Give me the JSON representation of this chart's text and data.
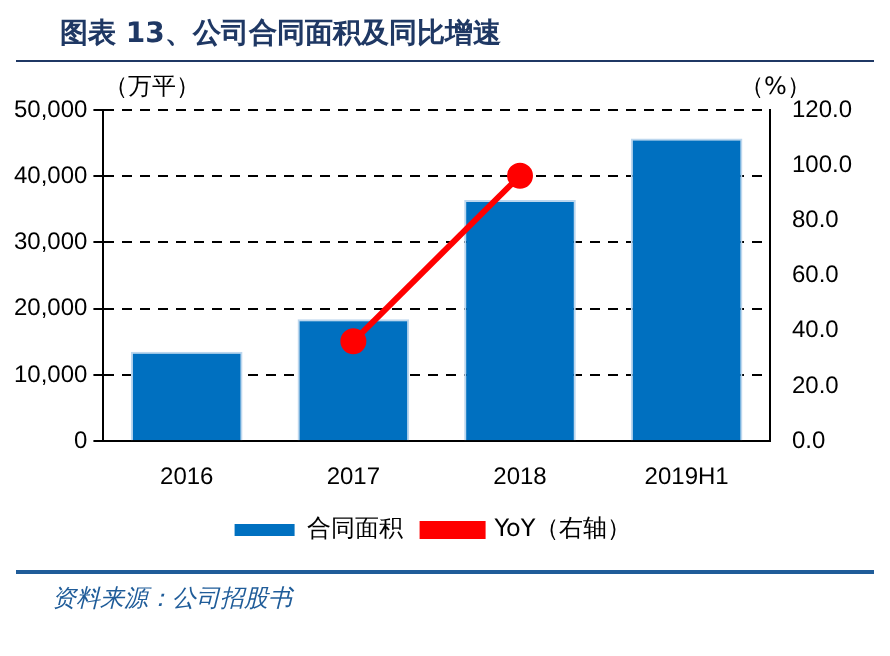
{
  "chart_data": {
    "type": "bar",
    "title": "图表 13、公司合同面积及同比增速",
    "ylabel": "（万平）",
    "y2label": "（%）",
    "categories": [
      "2016",
      "2017",
      "2018",
      "2019H1"
    ],
    "series": [
      {
        "name": "合同面积",
        "color": "#0070c0",
        "values": [
          13500,
          18400,
          36400,
          45700
        ]
      },
      {
        "name": "YoY（右轴）",
        "type": "line",
        "axis": "y2",
        "color": "#ff0000",
        "marker": "circle",
        "values": [
          null,
          36.2,
          96.2,
          null
        ]
      }
    ],
    "ylim": [
      0,
      50000
    ],
    "yticks": [
      {
        "value": 0,
        "label": "0"
      },
      {
        "value": 10000,
        "label": "10,000"
      },
      {
        "value": 20000,
        "label": "20,000"
      },
      {
        "value": 30000,
        "label": "30,000"
      },
      {
        "value": 40000,
        "label": "40,000"
      },
      {
        "value": 50000,
        "label": "50,000"
      }
    ],
    "y2lim": [
      0,
      120
    ],
    "y2ticks": [
      {
        "value": 0,
        "label": "0.0"
      },
      {
        "value": 20,
        "label": "20.0"
      },
      {
        "value": 40,
        "label": "40.0"
      },
      {
        "value": 60,
        "label": "60.0"
      },
      {
        "value": 80,
        "label": "80.0"
      },
      {
        "value": 100,
        "label": "100.0"
      },
      {
        "value": 120,
        "label": "120.0"
      }
    ],
    "grid": "y",
    "legend": "bottom",
    "annotations": [
      "资料来源：公司招股书"
    ]
  }
}
